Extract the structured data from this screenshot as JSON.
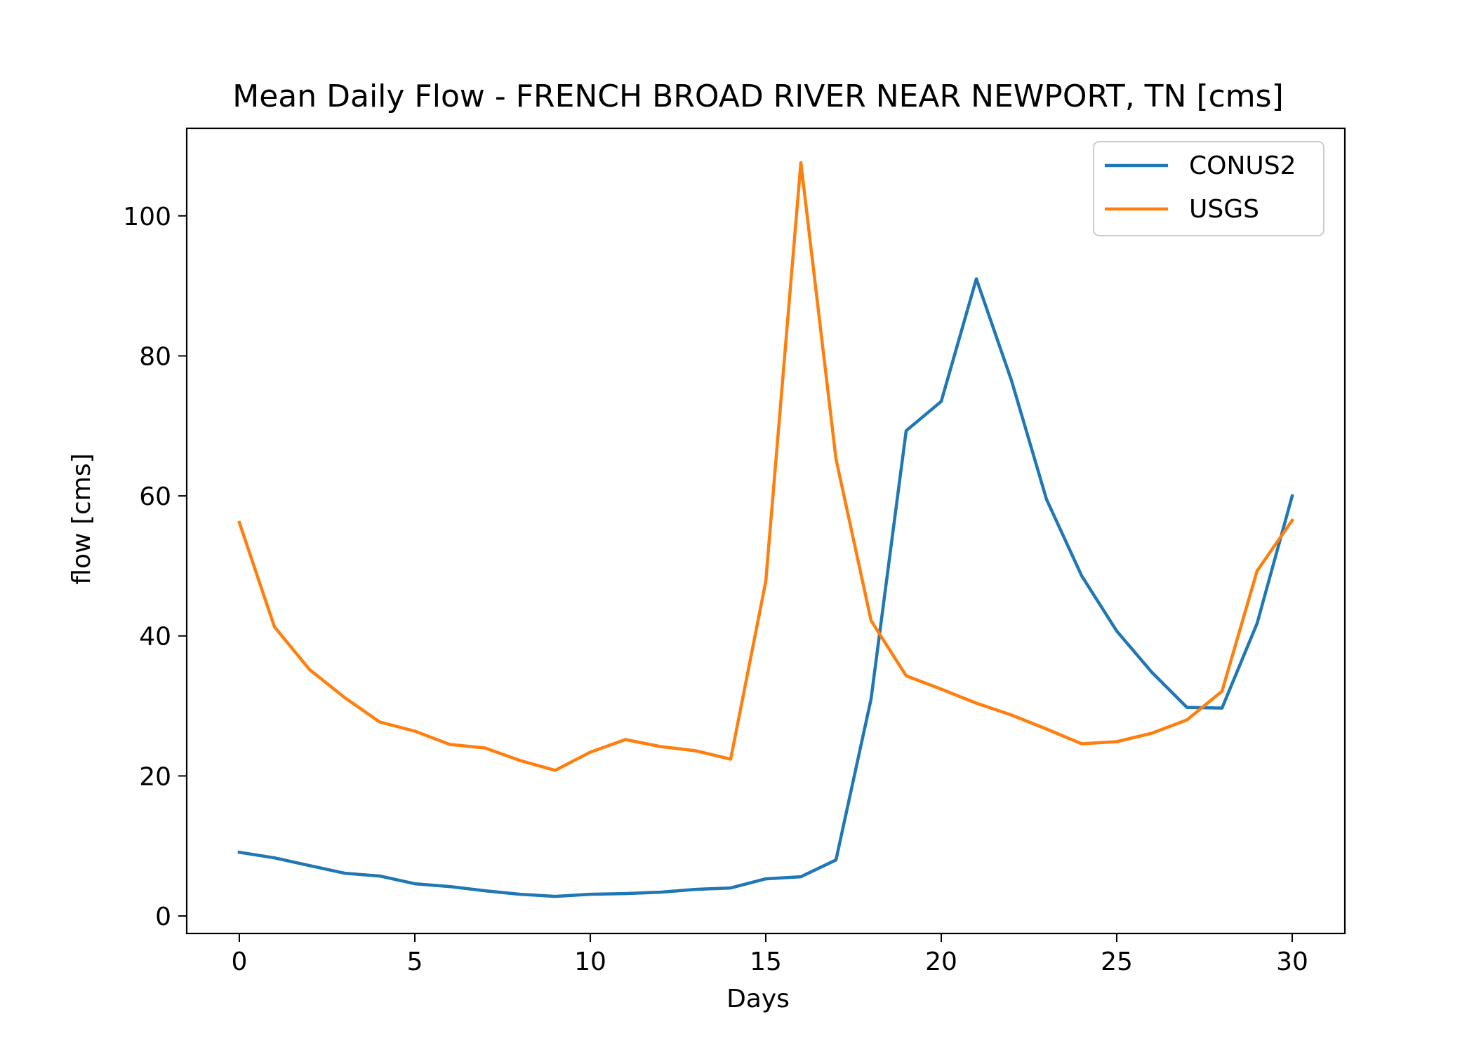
{
  "chart_data": {
    "type": "line",
    "title": "Mean Daily Flow - FRENCH BROAD RIVER NEAR NEWPORT, TN [cms]",
    "xlabel": "Days",
    "ylabel": "flow [cms]",
    "xlim": [
      -1.5,
      31.5
    ],
    "ylim": [
      -2.5,
      112.5
    ],
    "xticks": [
      0,
      5,
      10,
      15,
      20,
      25,
      30
    ],
    "yticks": [
      0,
      20,
      40,
      60,
      80,
      100
    ],
    "grid": false,
    "legend_position": "top-right",
    "x": [
      0,
      1,
      2,
      3,
      4,
      5,
      6,
      7,
      8,
      9,
      10,
      11,
      12,
      13,
      14,
      15,
      16,
      17,
      18,
      19,
      20,
      21,
      22,
      23,
      24,
      25,
      26,
      27,
      28,
      29,
      30
    ],
    "series": [
      {
        "name": "CONUS2",
        "color": "#1f77b4",
        "values": [
          9.1,
          8.3,
          7.2,
          6.1,
          5.7,
          4.6,
          4.2,
          3.6,
          3.1,
          2.8,
          3.1,
          3.2,
          3.4,
          3.8,
          4.0,
          5.3,
          5.6,
          8.0,
          31.0,
          69.3,
          73.5,
          91.0,
          76.5,
          59.5,
          48.6,
          40.7,
          34.8,
          29.8,
          29.7,
          41.8,
          60.0
        ]
      },
      {
        "name": "USGS",
        "color": "#ff7f0e",
        "values": [
          56.2,
          41.3,
          35.2,
          31.2,
          27.7,
          26.4,
          24.5,
          24.0,
          22.2,
          20.8,
          23.4,
          25.2,
          24.2,
          23.6,
          22.4,
          47.8,
          107.6,
          65.3,
          42.2,
          34.3,
          32.4,
          30.4,
          28.7,
          26.7,
          24.6,
          24.9,
          26.1,
          28.0,
          32.1,
          49.3,
          56.5
        ]
      }
    ]
  }
}
